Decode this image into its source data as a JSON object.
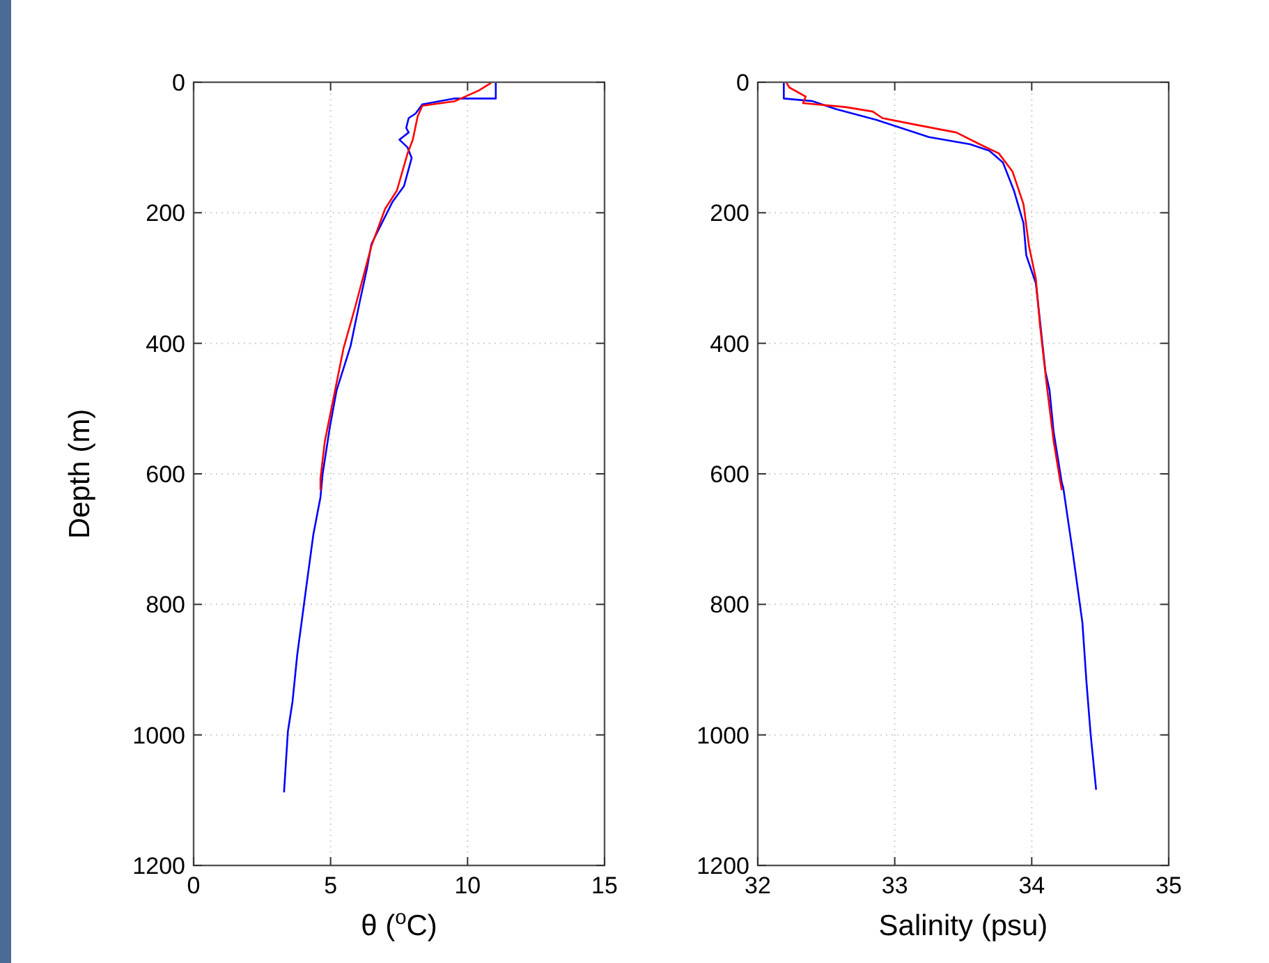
{
  "chart_data": [
    {
      "type": "line",
      "xlabel": "θ ($^{o}$C)",
      "ylabel": "Depth (m)",
      "xlim": [
        0,
        15
      ],
      "xticks": [
        0,
        5,
        10,
        15
      ],
      "ylim": [
        1200,
        0
      ],
      "yticks": [
        0,
        200,
        400,
        600,
        800,
        1000,
        1200
      ],
      "grid": true,
      "marker": "none",
      "line_style": "solid",
      "series": [
        {
          "color": "#0000ff",
          "x": [
            11.03,
            11.03,
            9.5,
            8.35,
            8.1,
            7.85,
            7.76,
            7.85,
            7.51,
            7.81,
            7.96,
            7.68,
            7.25,
            6.49,
            6.32,
            6.06,
            5.73,
            5.22,
            4.97,
            4.71,
            4.63,
            4.37,
            4.12,
            3.78,
            3.61,
            3.44,
            3.3
          ],
          "values": [
            0,
            25,
            25,
            34,
            48,
            55,
            70,
            77,
            88,
            100,
            116,
            159,
            184,
            248,
            287,
            337,
            404,
            472,
            529,
            600,
            636,
            693,
            771,
            878,
            949,
            995,
            1088
          ]
        },
        {
          "color": "#ff0000",
          "x": [
            10.86,
            10.4,
            9.54,
            8.35,
            8.18,
            8.0,
            7.81,
            7.42,
            6.99,
            6.49,
            5.9,
            5.47,
            5.13,
            4.79,
            4.63,
            4.63
          ],
          "values": [
            1,
            13,
            29,
            36,
            52,
            88,
            109,
            166,
            194,
            251,
            344,
            408,
            479,
            550,
            607,
            625
          ]
        }
      ]
    },
    {
      "type": "line",
      "xlabel": "Salinity (psu)",
      "xlim": [
        32,
        35
      ],
      "xticks": [
        32,
        33,
        34,
        35
      ],
      "ylim": [
        1200,
        0
      ],
      "yticks": [
        0,
        200,
        400,
        600,
        800,
        1000,
        1200
      ],
      "grid": true,
      "marker": "none",
      "line_style": "solid",
      "series": [
        {
          "color": "#0000ff",
          "x": [
            32.19,
            32.19,
            32.4,
            32.57,
            32.87,
            33.25,
            33.55,
            33.69,
            33.79,
            33.87,
            33.94,
            33.96,
            34.03,
            34.06,
            34.1,
            34.13,
            34.16,
            34.22,
            34.23,
            34.3,
            34.37,
            34.4,
            34.43,
            34.45,
            34.47
          ],
          "values": [
            0,
            25,
            29,
            41,
            58,
            84,
            95,
            105,
            123,
            166,
            216,
            265,
            308,
            365,
            443,
            472,
            536,
            614,
            621,
            721,
            828,
            920,
            999,
            1041,
            1084
          ]
        },
        {
          "color": "#ff0000",
          "x": [
            32.21,
            32.23,
            32.35,
            32.33,
            32.64,
            32.84,
            32.91,
            33.15,
            33.45,
            33.62,
            33.76,
            33.86,
            33.94,
            33.98,
            34.03,
            34.06,
            34.11,
            34.16,
            34.21,
            34.22
          ],
          "values": [
            1,
            8,
            22,
            32,
            38,
            45,
            55,
            65,
            77,
            95,
            109,
            137,
            187,
            251,
            301,
            372,
            465,
            550,
            614,
            625
          ]
        }
      ]
    }
  ]
}
